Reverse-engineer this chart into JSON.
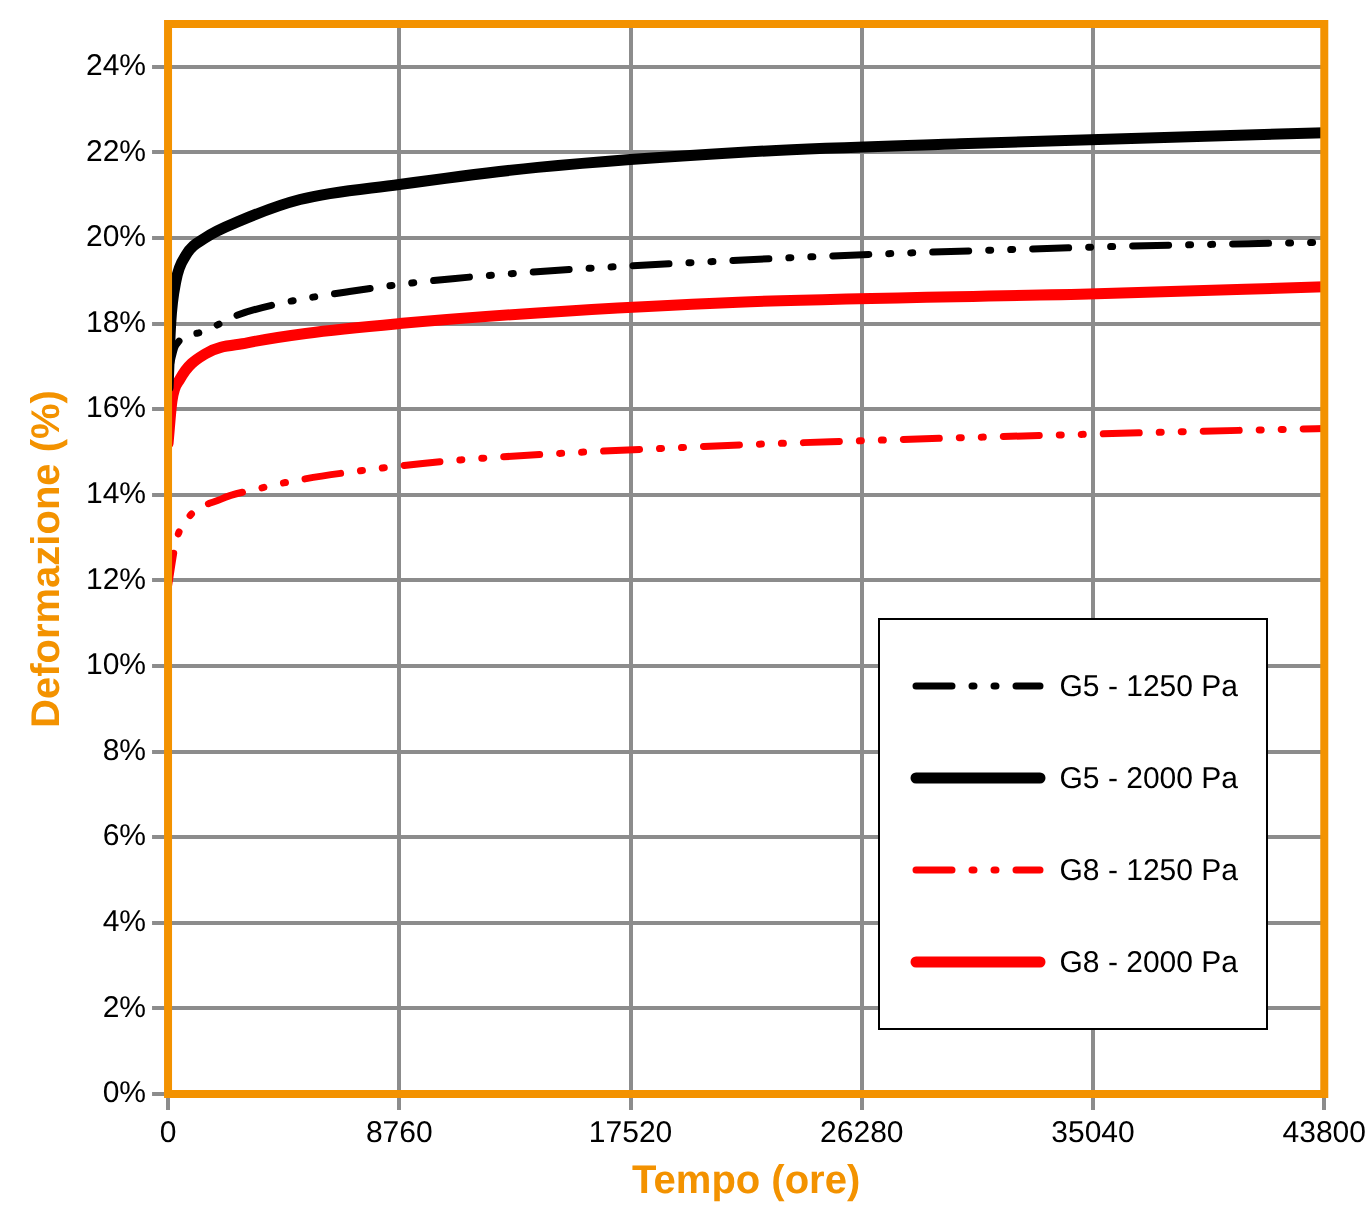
{
  "chart_data": {
    "type": "line",
    "xlabel": "Tempo (ore)",
    "ylabel": "Deformazione (%)",
    "xlim": [
      0,
      43800
    ],
    "xticks": [
      0,
      8760,
      17520,
      26280,
      35040,
      43800
    ],
    "ylim": [
      0,
      25
    ],
    "yticks": [
      {
        "value": 0,
        "label": "0%"
      },
      {
        "value": 2,
        "label": "2%"
      },
      {
        "value": 4,
        "label": "4%"
      },
      {
        "value": 6,
        "label": "6%"
      },
      {
        "value": 8,
        "label": "8%"
      },
      {
        "value": 10,
        "label": "10%"
      },
      {
        "value": 12,
        "label": "12%"
      },
      {
        "value": 14,
        "label": "14%"
      },
      {
        "value": 16,
        "label": "16%"
      },
      {
        "value": 18,
        "label": "18%"
      },
      {
        "value": 20,
        "label": "20%"
      },
      {
        "value": 22,
        "label": "22%"
      },
      {
        "value": 24,
        "label": "24%"
      }
    ],
    "grid": true,
    "legend": "bottom right",
    "marker": "none",
    "series": [
      {
        "name": "G5 - 1250 Pa",
        "color": "#000000",
        "line_style": "dashed",
        "x": [
          0,
          300,
          1260,
          2640,
          4080,
          6870,
          10780,
          21600,
          35180,
          43800
        ],
        "values": [
          16.8,
          17.5,
          17.8,
          18.2,
          18.45,
          18.75,
          19.05,
          19.48,
          19.79,
          19.9
        ]
      },
      {
        "name": "G5 - 2000 Pa",
        "color": "#000000",
        "line_style": "solid",
        "x": [
          0,
          100,
          300,
          680,
          1400,
          2720,
          5000,
          8760,
          14000,
          21600,
          30000,
          43800
        ],
        "values": [
          16.5,
          18.0,
          19.0,
          19.6,
          20.0,
          20.4,
          20.9,
          21.25,
          21.65,
          22.0,
          22.2,
          22.46
        ]
      },
      {
        "name": "G8 - 1250 Pa",
        "color": "#ff0000",
        "line_style": "dashed",
        "x": [
          0,
          300,
          680,
          2010,
          3470,
          4980,
          7780,
          10780,
          20300,
          25100,
          38200,
          43800
        ],
        "values": [
          11.8,
          12.9,
          13.4,
          13.9,
          14.15,
          14.35,
          14.6,
          14.8,
          15.13,
          15.24,
          15.47,
          15.55
        ]
      },
      {
        "name": "G8 - 2000 Pa",
        "color": "#ff0000",
        "line_style": "solid",
        "x": [
          0,
          150,
          450,
          1430,
          3000,
          5210,
          8760,
          14000,
          21600,
          35180,
          43800
        ],
        "values": [
          15.2,
          16.2,
          16.7,
          17.3,
          17.55,
          17.77,
          18.0,
          18.25,
          18.5,
          18.7,
          18.86
        ]
      }
    ]
  }
}
